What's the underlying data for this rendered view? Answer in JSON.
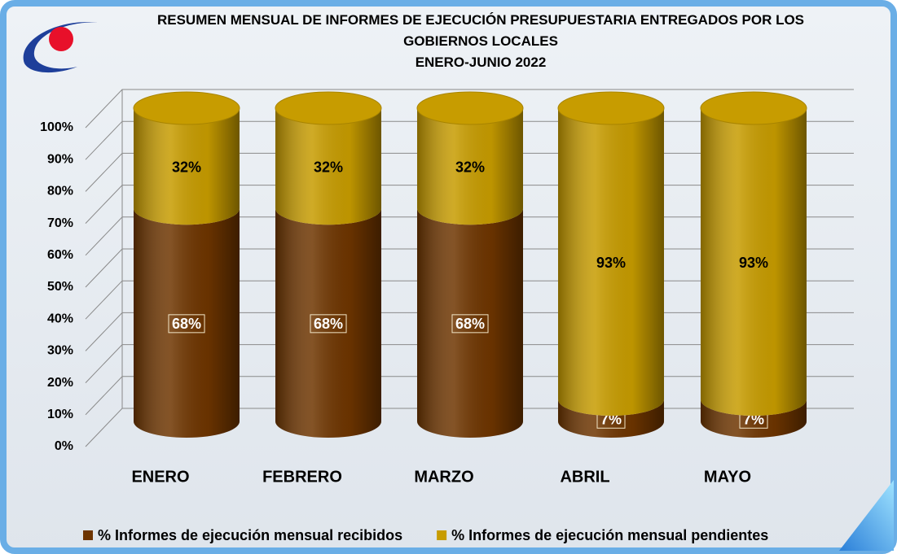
{
  "chart_data": {
    "type": "stacked-cylinder",
    "title": "RESUMEN MENSUAL DE INFORMES DE EJECUCIÓN PRESUPUESTARIA ENTREGADOS POR LOS GOBIERNOS LOCALES",
    "subtitle": "ENERO-JUNIO 2022",
    "categories": [
      "ENERO",
      "FEBRERO",
      "MARZO",
      "ABRIL",
      "MAYO"
    ],
    "series": [
      {
        "name": "% Informes de ejecución mensual recibidos",
        "color": "#6e3500",
        "values": [
          68,
          68,
          68,
          7,
          7
        ],
        "value_labels": [
          "68%",
          "68%",
          "68%",
          "7%",
          "7%"
        ]
      },
      {
        "name": "% Informes de ejecución mensual pendientes",
        "color": "#c79c00",
        "values": [
          32,
          32,
          32,
          93,
          93
        ],
        "value_labels": [
          "32%",
          "32%",
          "32%",
          "93%",
          "93%"
        ]
      }
    ],
    "ylim": [
      0,
      100
    ],
    "yticks": [
      {
        "value": 0,
        "label": "0%"
      },
      {
        "value": 10,
        "label": "10%"
      },
      {
        "value": 20,
        "label": "20%"
      },
      {
        "value": 30,
        "label": "30%"
      },
      {
        "value": 40,
        "label": "40%"
      },
      {
        "value": 50,
        "label": "50%"
      },
      {
        "value": 60,
        "label": "60%"
      },
      {
        "value": 70,
        "label": "70%"
      },
      {
        "value": 80,
        "label": "80%"
      },
      {
        "value": 90,
        "label": "90%"
      },
      {
        "value": 100,
        "label": "100%"
      }
    ],
    "grid": true,
    "legend": "bottom"
  }
}
